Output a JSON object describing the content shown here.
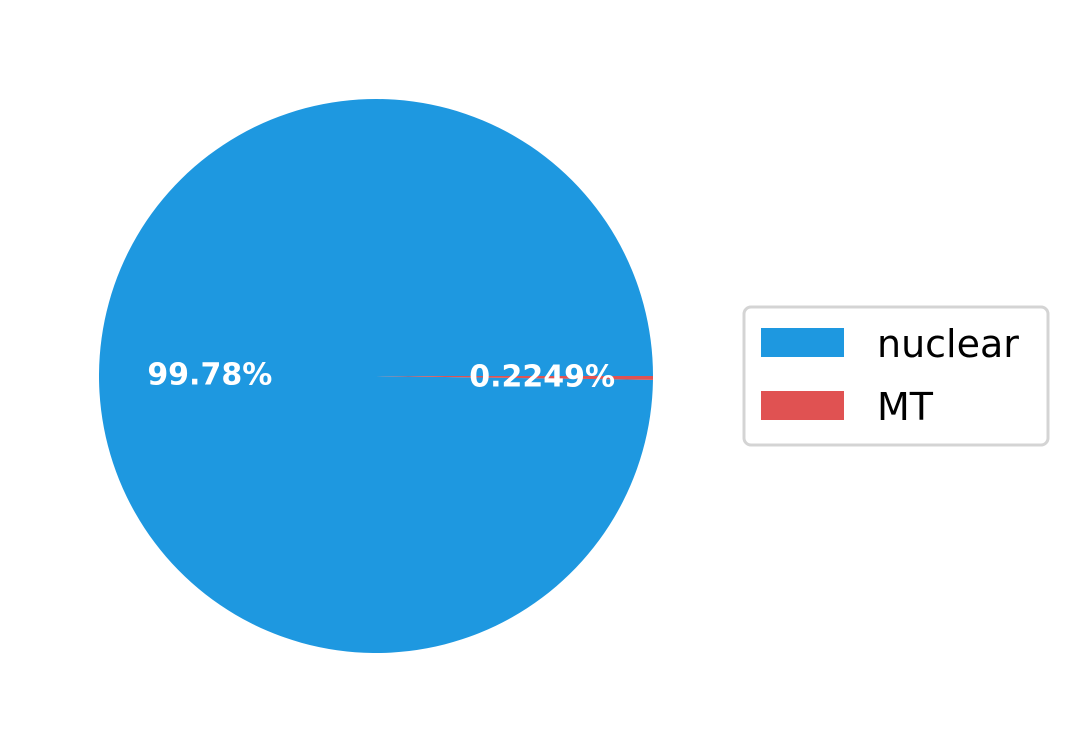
{
  "chart_data": {
    "type": "pie",
    "title": "",
    "slices": [
      {
        "name": "nuclear",
        "value": 99.78,
        "label": "99.78%",
        "color": "#1e98e0"
      },
      {
        "name": "MT",
        "value": 0.2249,
        "label": "0.2249%",
        "color": "#e05252"
      }
    ],
    "legend": {
      "placement": "right",
      "entries": [
        "nuclear",
        "MT"
      ]
    }
  }
}
